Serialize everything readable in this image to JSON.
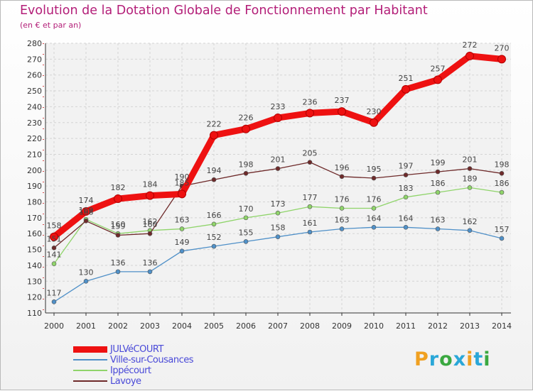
{
  "title": "Evolution de la Dotation Globale de Fonctionnement par Habitant",
  "subtitle": "(en € et par an)",
  "brand": {
    "letters": [
      "P",
      "r",
      "o",
      "x",
      "i",
      "t",
      "i"
    ],
    "colors": [
      "#f0a020",
      "#2aa7d8",
      "#3aa840",
      "#2aa7d8",
      "#f0a020",
      "#2aa7d8",
      "#3aa840"
    ]
  },
  "chart_data": {
    "type": "line",
    "title": "Evolution de la Dotation Globale de Fonctionnement par Habitant",
    "ylabel": "(en € et par an)",
    "xlabel": "",
    "categories": [
      "2000",
      "2001",
      "2002",
      "2003",
      "2004",
      "2005",
      "2006",
      "2007",
      "2008",
      "2009",
      "2010",
      "2011",
      "2012",
      "2013",
      "2014"
    ],
    "ylim": [
      110,
      280
    ],
    "yticks": [
      110,
      120,
      130,
      140,
      150,
      160,
      170,
      180,
      190,
      200,
      210,
      220,
      230,
      240,
      250,
      260,
      270,
      280
    ],
    "grid": true,
    "legend_position": "bottom-left",
    "series": [
      {
        "name": "JULVéCOURT",
        "color": "#ee1111",
        "values": [
          158,
          174,
          182,
          184,
          185,
          222,
          226,
          233,
          236,
          237,
          230,
          251,
          257,
          272,
          270
        ],
        "labels": [
          "158",
          "174",
          "182",
          "184",
          "185",
          "222",
          "226",
          "233",
          "236",
          "237",
          "230",
          "251",
          "257",
          "272",
          "270"
        ]
      },
      {
        "name": "Ville-sur-Cousances",
        "color": "#4f90c8",
        "values": [
          117,
          130,
          136,
          136,
          149,
          152,
          155,
          158,
          161,
          163,
          164,
          164,
          163,
          162,
          157
        ],
        "labels": [
          "117",
          "130",
          "136",
          "136",
          "149",
          "152",
          "155",
          "158",
          "161",
          "163",
          "164",
          "164",
          "163",
          "162",
          "157"
        ]
      },
      {
        "name": "Ippécourt",
        "color": "#8fd46a",
        "values": [
          141,
          169,
          160,
          162,
          163,
          166,
          170,
          173,
          177,
          176,
          176,
          183,
          186,
          189,
          186
        ],
        "labels": [
          "141",
          "169",
          "160",
          "162",
          "163",
          "166",
          "170",
          "173",
          "177",
          "176",
          "176",
          "183",
          "186",
          "189",
          "186"
        ]
      },
      {
        "name": "Lavoye",
        "color": "#6e2a2a",
        "values": [
          151,
          168,
          159,
          160,
          190,
          194,
          198,
          201,
          205,
          196,
          195,
          197,
          199,
          201,
          198
        ],
        "labels": [
          "151",
          "168",
          "159",
          "160",
          "190",
          "194",
          "198",
          "201",
          "205",
          "196",
          "195",
          "197",
          "199",
          "201",
          "198"
        ]
      }
    ]
  }
}
